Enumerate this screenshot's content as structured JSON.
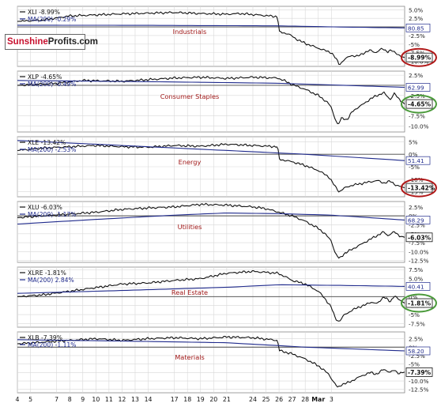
{
  "brand": {
    "name_part1": "Sunshine",
    "name_part2": "Profits.com"
  },
  "colors": {
    "price_line": "#111111",
    "ma_line": "#1f2a8c",
    "panel_title": "#a01818",
    "grid": "#d8d8d8",
    "circle_red": "#b01818",
    "circle_green": "#4a9a3a"
  },
  "chart_data": [
    {
      "type": "line",
      "title": "Industrials",
      "legend": [
        "XLI -8.99%",
        "MA(200) -0.29%"
      ],
      "y_ticks": [
        "5.0%",
        "2.5%",
        "0%",
        "-2.5%",
        "-5%",
        "-7.5%",
        "-10.0%"
      ],
      "ylim": [
        -11.5,
        6
      ],
      "ma_label": "80.85",
      "last_label": "-8.99%",
      "circle": "red",
      "price_anchors": [
        [
          0,
          1.6
        ],
        [
          2,
          2.0
        ],
        [
          4,
          3.2
        ],
        [
          6,
          3.5
        ],
        [
          8,
          3.8
        ],
        [
          10,
          4.0
        ],
        [
          12,
          4.2
        ],
        [
          14,
          3.9
        ],
        [
          16,
          3.7
        ],
        [
          17,
          3.9
        ],
        [
          18,
          3.6
        ],
        [
          19.9,
          3.0
        ],
        [
          20.0,
          -1.5
        ],
        [
          20.7,
          -2.0
        ],
        [
          21.3,
          -3.5
        ],
        [
          22.0,
          -4.8
        ],
        [
          23.0,
          -6.2
        ],
        [
          24.0,
          -7.5
        ],
        [
          24.4,
          -9.5
        ],
        [
          24.6,
          -11.0
        ],
        [
          25.0,
          -9.5
        ],
        [
          25.5,
          -8.3
        ],
        [
          26.0,
          -8.6
        ],
        [
          26.4,
          -7.7
        ],
        [
          27.0,
          -6.8
        ],
        [
          27.4,
          -7.5
        ],
        [
          27.9,
          -6.3
        ],
        [
          28.3,
          -7.2
        ],
        [
          28.6,
          -6.9
        ],
        [
          29.0,
          -7.7
        ],
        [
          29.3,
          -8.6
        ],
        [
          29.6,
          -8.9
        ]
      ],
      "ma_anchors": [
        [
          0,
          0.5
        ],
        [
          10,
          0.45
        ],
        [
          20,
          0.3
        ],
        [
          25,
          -0.05
        ],
        [
          29.6,
          -0.29
        ]
      ]
    },
    {
      "type": "line",
      "title": "Consumer Staples",
      "legend": [
        "XLP -4.65%",
        "MA(200) -0.49%"
      ],
      "y_ticks": [
        "2.5%",
        "0%",
        "-2.5%",
        "-5%",
        "-7.5%",
        "-10.0%"
      ],
      "ylim": [
        -11.5,
        3.5
      ],
      "ma_label": "62.99",
      "last_label": "-4.65%",
      "circle": "green",
      "price_anchors": [
        [
          0,
          0.0
        ],
        [
          3,
          0.5
        ],
        [
          5,
          1.2
        ],
        [
          8,
          1.0
        ],
        [
          10,
          1.4
        ],
        [
          12,
          1.8
        ],
        [
          14,
          2.0
        ],
        [
          16,
          1.7
        ],
        [
          18,
          2.0
        ],
        [
          19.9,
          1.8
        ],
        [
          20.5,
          1.0
        ],
        [
          21.0,
          0.2
        ],
        [
          22.0,
          -1.0
        ],
        [
          23.0,
          -2.5
        ],
        [
          23.7,
          -4.2
        ],
        [
          24.0,
          -5.5
        ],
        [
          24.2,
          -7.5
        ],
        [
          24.5,
          -9.8
        ],
        [
          24.8,
          -8.0
        ],
        [
          25.2,
          -8.5
        ],
        [
          25.6,
          -6.5
        ],
        [
          26.0,
          -5.5
        ],
        [
          26.5,
          -4.5
        ],
        [
          27.0,
          -3.3
        ],
        [
          27.5,
          -2.5
        ],
        [
          28.0,
          -1.8
        ],
        [
          28.5,
          -3.5
        ],
        [
          28.8,
          -2.0
        ],
        [
          29.2,
          -3.5
        ],
        [
          29.6,
          -4.6
        ]
      ],
      "ma_anchors": [
        [
          0,
          1.2
        ],
        [
          10,
          0.9
        ],
        [
          20,
          0.5
        ],
        [
          25,
          0.0
        ],
        [
          29.6,
          -0.49
        ]
      ]
    },
    {
      "type": "line",
      "title": "Energy",
      "legend": [
        "XLE -13.42%",
        "MA(200) -2.53%"
      ],
      "y_ticks": [
        "5%",
        "0%",
        "-5%",
        "-10%",
        "-15%"
      ],
      "ylim": [
        -17,
        7
      ],
      "ma_label": "51.41",
      "last_label": "-13.42%",
      "circle": "red",
      "price_anchors": [
        [
          0,
          1.5
        ],
        [
          2,
          2.5
        ],
        [
          4,
          3.0
        ],
        [
          6,
          3.5
        ],
        [
          8,
          3.0
        ],
        [
          10,
          2.8
        ],
        [
          12,
          3.5
        ],
        [
          14,
          3.2
        ],
        [
          16,
          4.0
        ],
        [
          18,
          3.5
        ],
        [
          19.9,
          3.0
        ],
        [
          20.0,
          -2.0
        ],
        [
          21.0,
          -3.0
        ],
        [
          22.0,
          -4.5
        ],
        [
          23.0,
          -6.5
        ],
        [
          23.8,
          -9.0
        ],
        [
          24.3,
          -13.0
        ],
        [
          24.6,
          -15.0
        ],
        [
          25.0,
          -13.5
        ],
        [
          25.5,
          -12.5
        ],
        [
          26.0,
          -12.0
        ],
        [
          26.5,
          -11.5
        ],
        [
          27.0,
          -11.0
        ],
        [
          27.5,
          -10.5
        ],
        [
          28.0,
          -11.5
        ],
        [
          28.5,
          -10.8
        ],
        [
          29.0,
          -12.5
        ],
        [
          29.6,
          -13.4
        ]
      ],
      "ma_anchors": [
        [
          0,
          5.5
        ],
        [
          8,
          3.5
        ],
        [
          16,
          1.5
        ],
        [
          22,
          0.0
        ],
        [
          29.6,
          -2.53
        ]
      ]
    },
    {
      "type": "line",
      "title": "Utilities",
      "legend": [
        "XLU -6.03%",
        "MA(200) -1.17%"
      ],
      "y_ticks": [
        "2.5%",
        "0%",
        "-2.5%",
        "-5%",
        "-7.5%",
        "-10.0%",
        "-12.5%"
      ],
      "ylim": [
        -13,
        4
      ],
      "ma_label": "68.29",
      "last_label": "-6.03%",
      "circle": "none",
      "price_anchors": [
        [
          0,
          -0.5
        ],
        [
          2,
          0.0
        ],
        [
          4,
          0.5
        ],
        [
          6,
          1.0
        ],
        [
          8,
          1.8
        ],
        [
          10,
          2.2
        ],
        [
          12,
          2.5
        ],
        [
          14,
          3.2
        ],
        [
          16,
          3.0
        ],
        [
          18,
          2.5
        ],
        [
          19.0,
          2.0
        ],
        [
          20.0,
          1.0
        ],
        [
          21.0,
          0.0
        ],
        [
          22.0,
          -1.5
        ],
        [
          23.0,
          -3.5
        ],
        [
          23.5,
          -5.0
        ],
        [
          24.0,
          -7.0
        ],
        [
          24.3,
          -10.5
        ],
        [
          24.6,
          -12.0
        ],
        [
          25.0,
          -10.5
        ],
        [
          25.5,
          -9.5
        ],
        [
          26.0,
          -8.5
        ],
        [
          26.5,
          -7.5
        ],
        [
          27.0,
          -6.5
        ],
        [
          27.5,
          -5.5
        ],
        [
          28.0,
          -4.5
        ],
        [
          28.3,
          -5.5
        ],
        [
          28.8,
          -4.5
        ],
        [
          29.2,
          -5.5
        ],
        [
          29.6,
          -6.0
        ]
      ],
      "ma_anchors": [
        [
          0,
          -2.3
        ],
        [
          6,
          -1.0
        ],
        [
          12,
          0.2
        ],
        [
          16,
          0.8
        ],
        [
          20,
          0.6
        ],
        [
          24,
          0.2
        ],
        [
          29.6,
          -1.17
        ]
      ]
    },
    {
      "type": "line",
      "title": "Real Estate",
      "legend": [
        "XLRE -1.81%",
        "MA(200) 2.84%"
      ],
      "y_ticks": [
        "7.5%",
        "5.0%",
        "2.5%",
        "0%",
        "-2.5%",
        "-5%",
        "-7.5%"
      ],
      "ylim": [
        -8.5,
        8.2
      ],
      "ma_label": "40.41",
      "last_label": "-1.81%",
      "circle": "green",
      "price_anchors": [
        [
          0,
          0.0
        ],
        [
          2,
          0.5
        ],
        [
          4,
          1.5
        ],
        [
          6,
          2.5
        ],
        [
          8,
          3.5
        ],
        [
          10,
          3.8
        ],
        [
          12,
          4.5
        ],
        [
          14,
          5.0
        ],
        [
          16,
          6.5
        ],
        [
          18,
          7.0
        ],
        [
          19.9,
          6.5
        ],
        [
          20.5,
          5.5
        ],
        [
          21.0,
          4.5
        ],
        [
          22.0,
          3.5
        ],
        [
          23.0,
          1.5
        ],
        [
          23.5,
          -0.5
        ],
        [
          24.0,
          -3.0
        ],
        [
          24.3,
          -6.0
        ],
        [
          24.6,
          -7.0
        ],
        [
          25.0,
          -5.0
        ],
        [
          25.5,
          -4.0
        ],
        [
          26.0,
          -3.0
        ],
        [
          26.5,
          -2.5
        ],
        [
          27.0,
          -1.5
        ],
        [
          27.5,
          -2.0
        ],
        [
          28.0,
          0.0
        ],
        [
          28.5,
          -1.5
        ],
        [
          28.8,
          0.3
        ],
        [
          29.2,
          -1.0
        ],
        [
          29.6,
          -1.8
        ]
      ],
      "ma_anchors": [
        [
          0,
          0.9
        ],
        [
          8,
          1.7
        ],
        [
          16,
          2.6
        ],
        [
          20,
          3.3
        ],
        [
          25,
          3.1
        ],
        [
          29.6,
          2.84
        ]
      ]
    },
    {
      "type": "line",
      "title": "Materials",
      "legend": [
        "XLB -7.39%",
        "MA(200) -1.11%"
      ],
      "y_ticks": [
        "2.5%",
        "0%",
        "-2.5%",
        "-5%",
        "-7.5%",
        "-10.0%",
        "-12.5%"
      ],
      "ylim": [
        -13.5,
        4.5
      ],
      "ma_label": "58.20",
      "last_label": "-7.39%",
      "circle": "none",
      "price_anchors": [
        [
          0,
          1.0
        ],
        [
          2,
          1.5
        ],
        [
          4,
          2.0
        ],
        [
          6,
          2.5
        ],
        [
          8,
          2.0
        ],
        [
          10,
          2.5
        ],
        [
          12,
          2.8
        ],
        [
          14,
          2.5
        ],
        [
          16,
          3.0
        ],
        [
          18,
          2.8
        ],
        [
          19.9,
          2.0
        ],
        [
          20.0,
          -1.0
        ],
        [
          21.0,
          -2.0
        ],
        [
          22.0,
          -3.5
        ],
        [
          23.0,
          -5.5
        ],
        [
          23.8,
          -8.0
        ],
        [
          24.2,
          -10.5
        ],
        [
          24.5,
          -12.0
        ],
        [
          24.8,
          -11.0
        ],
        [
          25.3,
          -10.5
        ],
        [
          25.8,
          -9.5
        ],
        [
          26.3,
          -8.5
        ],
        [
          27.0,
          -7.5
        ],
        [
          27.5,
          -8.0
        ],
        [
          28.0,
          -6.5
        ],
        [
          28.5,
          -7.5
        ],
        [
          28.8,
          -6.8
        ],
        [
          29.2,
          -7.8
        ],
        [
          29.6,
          -7.4
        ]
      ],
      "ma_anchors": [
        [
          0,
          2.2
        ],
        [
          8,
          1.8
        ],
        [
          16,
          1.3
        ],
        [
          22,
          0.0
        ],
        [
          29.6,
          -1.11
        ]
      ]
    }
  ],
  "x_axis": {
    "ticks": [
      {
        "pos": 0,
        "label": "4"
      },
      {
        "pos": 1,
        "label": "5"
      },
      {
        "pos": 3,
        "label": "7"
      },
      {
        "pos": 4,
        "label": "8"
      },
      {
        "pos": 5,
        "label": "9"
      },
      {
        "pos": 6,
        "label": "10"
      },
      {
        "pos": 7,
        "label": "11"
      },
      {
        "pos": 8,
        "label": "12"
      },
      {
        "pos": 9,
        "label": "13"
      },
      {
        "pos": 10,
        "label": "14"
      },
      {
        "pos": 12,
        "label": "17"
      },
      {
        "pos": 13,
        "label": "18"
      },
      {
        "pos": 14,
        "label": "19"
      },
      {
        "pos": 15,
        "label": "20"
      },
      {
        "pos": 16,
        "label": "21"
      },
      {
        "pos": 18,
        "label": "24"
      },
      {
        "pos": 19,
        "label": "25"
      },
      {
        "pos": 20,
        "label": "26"
      },
      {
        "pos": 21,
        "label": "27"
      },
      {
        "pos": 22,
        "label": "28"
      },
      {
        "pos": 23,
        "label": "Mar",
        "bold": true
      },
      {
        "pos": 24,
        "label": "3"
      }
    ],
    "range": [
      0,
      29.6
    ]
  }
}
